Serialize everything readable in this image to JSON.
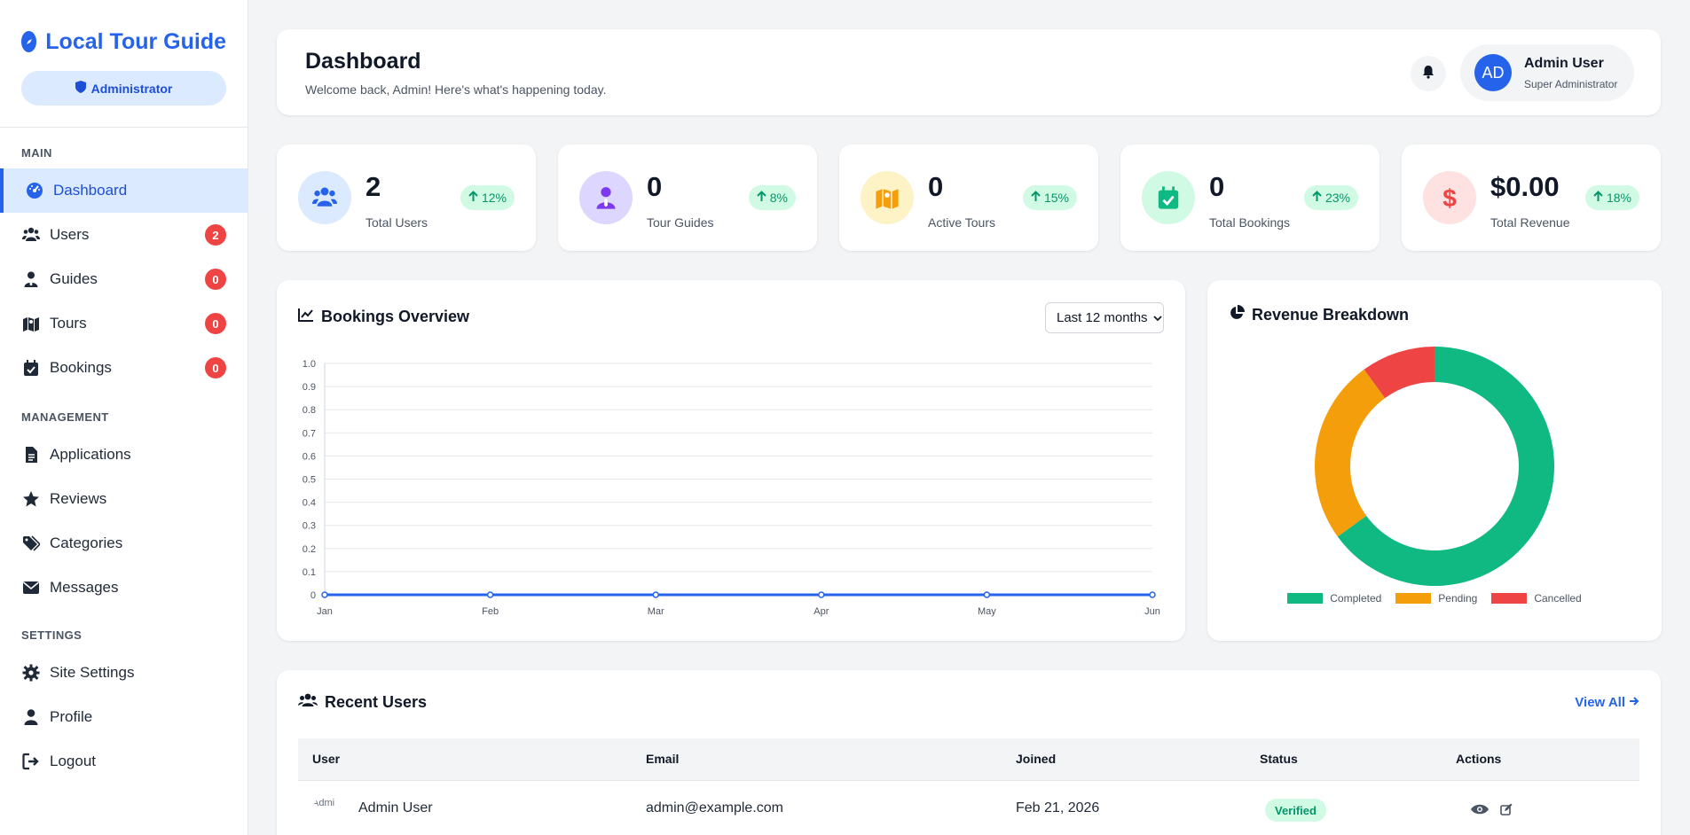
{
  "brand": {
    "title": "Local Tour Guide",
    "role_label": "Administrator"
  },
  "nav": {
    "main_heading": "MAIN",
    "management_heading": "MANAGEMENT",
    "settings_heading": "SETTINGS",
    "main": [
      {
        "label": "Dashboard",
        "icon": "gauge-icon",
        "active": true
      },
      {
        "label": "Users",
        "icon": "users-icon",
        "badge": "2"
      },
      {
        "label": "Guides",
        "icon": "user-tie-icon",
        "badge": "0"
      },
      {
        "label": "Tours",
        "icon": "map-icon",
        "badge": "0"
      },
      {
        "label": "Bookings",
        "icon": "calendar-check-icon",
        "badge": "0"
      }
    ],
    "management": [
      {
        "label": "Applications",
        "icon": "file-icon"
      },
      {
        "label": "Reviews",
        "icon": "star-icon"
      },
      {
        "label": "Categories",
        "icon": "tags-icon"
      },
      {
        "label": "Messages",
        "icon": "envelope-icon"
      }
    ],
    "settings": [
      {
        "label": "Site Settings",
        "icon": "gear-icon"
      },
      {
        "label": "Profile",
        "icon": "user-icon"
      },
      {
        "label": "Logout",
        "icon": "logout-icon"
      }
    ]
  },
  "header": {
    "title": "Dashboard",
    "subtitle": "Welcome back, Admin! Here's what's happening today.",
    "user": {
      "initials": "AD",
      "name": "Admin User",
      "role": "Super Administrator"
    }
  },
  "stats": [
    {
      "value": "2",
      "label": "Total Users",
      "trend": "12%",
      "icon": "users-icon",
      "bg": "#dbeafe",
      "fg": "#2563eb"
    },
    {
      "value": "0",
      "label": "Tour Guides",
      "trend": "8%",
      "icon": "user-tie-icon",
      "bg": "#ddd6fe",
      "fg": "#7c3aed"
    },
    {
      "value": "0",
      "label": "Active Tours",
      "trend": "15%",
      "icon": "map-icon",
      "bg": "#fef3c7",
      "fg": "#f59e0b"
    },
    {
      "value": "0",
      "label": "Total Bookings",
      "trend": "23%",
      "icon": "calendar-check-icon",
      "bg": "#d1fae5",
      "fg": "#10b981"
    },
    {
      "value": "$0.00",
      "label": "Total Revenue",
      "trend": "18%",
      "icon": "dollar-icon",
      "bg": "#fee2e2",
      "fg": "#ef4444"
    }
  ],
  "bookings": {
    "title": "Bookings Overview",
    "range": "Last 12 months"
  },
  "revenue": {
    "title": "Revenue Breakdown"
  },
  "chart_data": [
    {
      "type": "line",
      "x": [
        "Jan",
        "Feb",
        "Mar",
        "Apr",
        "May",
        "Jun"
      ],
      "series": [
        {
          "values": [
            0,
            0,
            0,
            0,
            0,
            0
          ],
          "color": "#2563eb"
        }
      ],
      "ylim": [
        0,
        1
      ],
      "yticks": [
        "0",
        "0.1",
        "0.2",
        "0.3",
        "0.4",
        "0.5",
        "0.6",
        "0.7",
        "0.8",
        "0.9",
        "1.0"
      ],
      "grid": true
    },
    {
      "type": "pie",
      "donut": true,
      "categories": [
        "Completed",
        "Pending",
        "Cancelled"
      ],
      "values": [
        65,
        25,
        10
      ],
      "colors": [
        "#10b981",
        "#f59e0b",
        "#ef4444"
      ],
      "legend": "bottom"
    }
  ],
  "recent_users": {
    "title": "Recent Users",
    "view_all": "View All",
    "columns": [
      "User",
      "Email",
      "Joined",
      "Status",
      "Actions"
    ],
    "rows": [
      {
        "avatar_alt": "Admi",
        "name": "Admin User",
        "email": "admin@example.com",
        "joined": "Feb 21, 2026",
        "status": "Verified"
      }
    ]
  }
}
